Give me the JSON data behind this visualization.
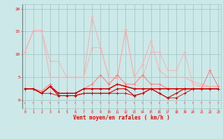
{
  "x": [
    0,
    1,
    2,
    3,
    4,
    5,
    6,
    7,
    8,
    9,
    10,
    11,
    12,
    13,
    14,
    15,
    16,
    17,
    18,
    19,
    20,
    21,
    22,
    23
  ],
  "line_lp1": [
    10.5,
    15.2,
    15.3,
    5.0,
    5.0,
    5.0,
    5.0,
    5.0,
    18.2,
    11.5,
    5.0,
    4.8,
    15.5,
    5.0,
    7.8,
    13.0,
    6.5,
    5.0,
    5.0,
    5.0,
    4.0,
    3.5,
    3.0,
    3.0
  ],
  "line_lp2": [
    10.5,
    15.0,
    15.0,
    8.5,
    8.5,
    5.0,
    5.0,
    5.0,
    11.5,
    11.5,
    5.0,
    5.0,
    15.5,
    5.0,
    5.0,
    10.5,
    10.5,
    6.5,
    6.5,
    10.5,
    3.5,
    3.0,
    3.0,
    3.0
  ],
  "line_mp": [
    2.5,
    2.5,
    2.0,
    3.5,
    1.5,
    1.5,
    1.5,
    2.5,
    3.5,
    5.5,
    3.5,
    5.5,
    3.5,
    3.5,
    5.5,
    3.5,
    3.5,
    2.5,
    2.5,
    2.5,
    2.5,
    2.5,
    6.5,
    3.0
  ],
  "line_dr1": [
    2.5,
    2.5,
    1.5,
    3.0,
    1.5,
    1.5,
    1.5,
    2.5,
    2.5,
    2.5,
    2.5,
    3.5,
    3.0,
    2.5,
    2.5,
    2.5,
    2.5,
    2.5,
    2.5,
    2.5,
    2.5,
    2.5,
    2.5,
    2.5
  ],
  "line_dr2": [
    2.5,
    2.5,
    1.5,
    3.0,
    1.0,
    1.0,
    1.0,
    1.5,
    1.5,
    1.5,
    1.5,
    2.5,
    2.5,
    1.0,
    1.5,
    2.5,
    1.5,
    0.5,
    1.5,
    2.5,
    2.5,
    2.5,
    2.5,
    2.5
  ],
  "line_dr3": [
    2.5,
    2.5,
    1.5,
    1.5,
    1.0,
    1.0,
    1.0,
    1.5,
    1.5,
    1.5,
    1.5,
    1.5,
    1.5,
    1.0,
    1.5,
    2.5,
    1.5,
    0.5,
    0.5,
    1.5,
    2.5,
    2.5,
    2.5,
    2.5
  ],
  "bgcolor": "#cce8e8",
  "grid_color": "#a0c8c8",
  "color_lp": "#ffaaaa",
  "color_mp": "#ff7777",
  "color_dr": "#cc0000",
  "xlim": [
    -0.3,
    23.3
  ],
  "ylim": [
    -1.8,
    21.0
  ],
  "yticks": [
    0,
    5,
    10,
    15,
    20
  ],
  "xticks": [
    0,
    1,
    2,
    3,
    4,
    5,
    6,
    7,
    8,
    9,
    10,
    11,
    12,
    13,
    14,
    15,
    16,
    17,
    18,
    19,
    20,
    21,
    22,
    23
  ],
  "xlabel": "Vent moyen/en rafales ( km/h )"
}
